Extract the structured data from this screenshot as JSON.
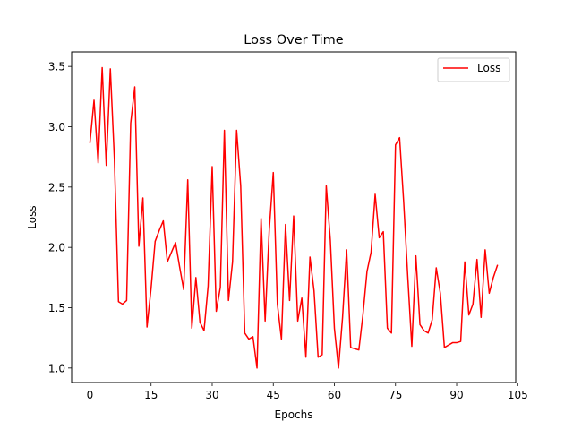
{
  "chart_data": {
    "type": "line",
    "title": "Loss Over Time",
    "xlabel": "Epochs",
    "ylabel": "Loss",
    "xlim": [
      -4.5,
      104.5
    ],
    "ylim": [
      0.88,
      3.62
    ],
    "xticks": [
      0,
      15,
      30,
      45,
      60,
      75,
      90,
      105
    ],
    "yticks": [
      1.0,
      1.5,
      2.0,
      2.5,
      3.0,
      3.5
    ],
    "grid": false,
    "legend": "top-right",
    "series": [
      {
        "name": "Loss",
        "color": "#ff0000",
        "x": [
          0,
          1,
          2,
          3,
          4,
          5,
          6,
          7,
          8,
          9,
          10,
          11,
          12,
          13,
          14,
          15,
          16,
          17,
          18,
          19,
          20,
          21,
          22,
          23,
          24,
          25,
          26,
          27,
          28,
          29,
          30,
          31,
          32,
          33,
          34,
          35,
          36,
          37,
          38,
          39,
          40,
          41,
          42,
          43,
          44,
          45,
          46,
          47,
          48,
          49,
          50,
          51,
          52,
          53,
          54,
          55,
          56,
          57,
          58,
          59,
          60,
          61,
          62,
          63,
          64,
          65,
          66,
          67,
          68,
          69,
          70,
          71,
          72,
          73,
          74,
          75,
          76,
          77,
          78,
          79,
          80,
          81,
          82,
          83,
          84,
          85,
          86,
          87,
          88,
          89,
          90,
          91,
          92,
          93,
          94,
          95,
          96,
          97,
          98,
          99,
          100
        ],
        "values": [
          2.87,
          3.22,
          2.7,
          3.49,
          2.68,
          3.48,
          2.73,
          1.55,
          1.53,
          1.56,
          3.03,
          3.33,
          2.01,
          2.41,
          1.34,
          1.66,
          2.05,
          2.14,
          2.22,
          1.88,
          1.96,
          2.04,
          1.84,
          1.65,
          2.56,
          1.33,
          1.75,
          1.38,
          1.31,
          1.68,
          2.67,
          1.47,
          1.67,
          2.97,
          1.56,
          1.88,
          2.97,
          2.51,
          1.29,
          1.24,
          1.26,
          1.0,
          2.24,
          1.39,
          2.14,
          2.62,
          1.53,
          1.24,
          2.19,
          1.56,
          2.26,
          1.39,
          1.58,
          1.09,
          1.92,
          1.64,
          1.09,
          1.11,
          2.51,
          2.06,
          1.33,
          1.0,
          1.42,
          1.98,
          1.17,
          1.16,
          1.15,
          1.44,
          1.8,
          1.96,
          2.44,
          2.08,
          2.13,
          1.33,
          1.29,
          2.85,
          2.91,
          2.38,
          1.76,
          1.18,
          1.93,
          1.36,
          1.31,
          1.29,
          1.4,
          1.83,
          1.62,
          1.17,
          1.19,
          1.21,
          1.21,
          1.22,
          1.88,
          1.44,
          1.53,
          1.9,
          1.42,
          1.98,
          1.62,
          1.75,
          1.85
        ]
      }
    ]
  }
}
